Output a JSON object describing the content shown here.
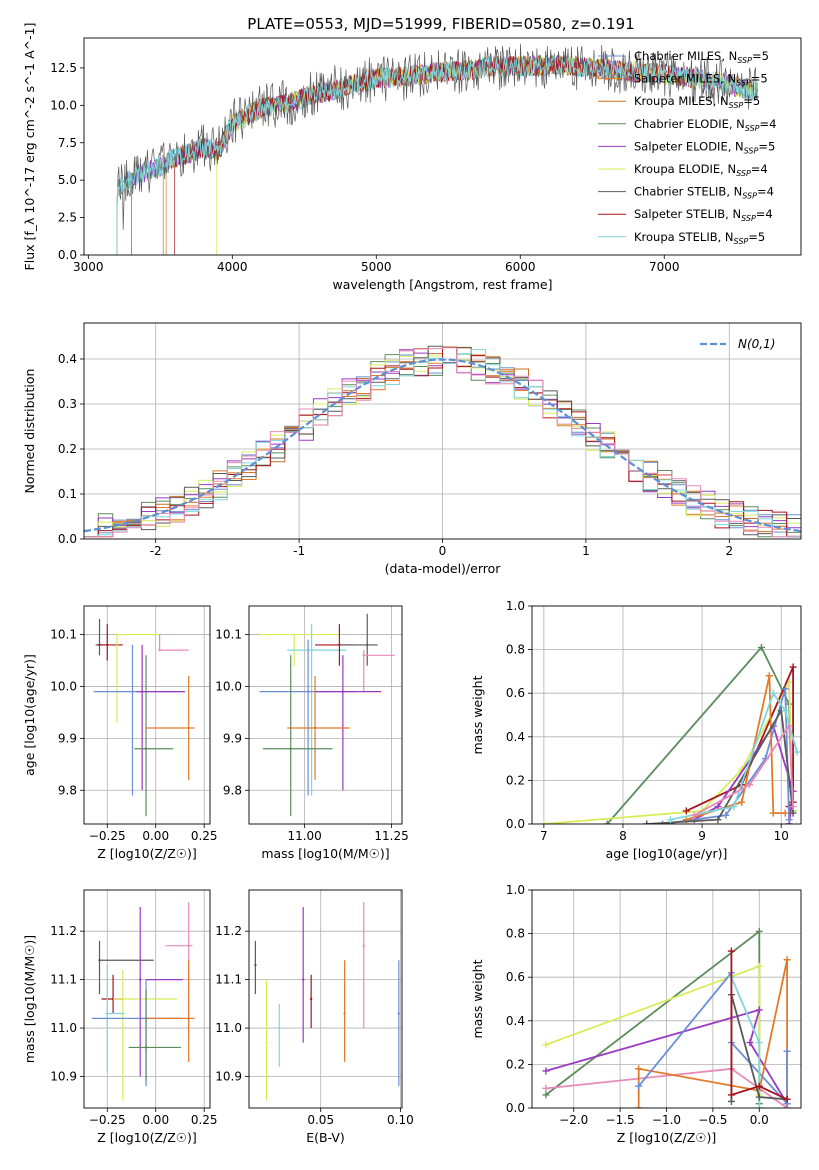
{
  "figure_title": "PLATE=0553, MJD=51999, FIBERID=0580, z=0.191",
  "colors": {
    "chabrier_miles": "#6a8fd6",
    "salpeter_miles": "#e27a29",
    "kroupa_miles": "#c96f1f",
    "chabrier_elodie": "#5c8c5c",
    "salpeter_elodie": "#9b39c2",
    "kroupa_elodie": "#d8ec5a",
    "chabrier_stelib": "#5a5a5a",
    "salpeter_stelib": "#a6151f",
    "kroupa_stelib": "#7fd6dc",
    "pink": "#e78ab8",
    "gauss": "#5b8fd6",
    "grid": "#b0b0b0"
  },
  "chart_data": [
    {
      "id": "spectrum",
      "type": "line",
      "title": "PLATE=0553, MJD=51999, FIBERID=0580, z=0.191",
      "xlabel": "wavelength [Angstrom, rest frame]",
      "ylabel": "Flux [f_λ 10^-17 erg cm^-2 s^-1 A^-1]",
      "xlim": [
        2970,
        7950
      ],
      "ylim": [
        0,
        14.5
      ],
      "xticks": [
        3000,
        4000,
        5000,
        6000,
        7000
      ],
      "yticks": [
        0.0,
        2.5,
        5.0,
        7.5,
        10.0,
        12.5
      ],
      "grid": false,
      "legend": "top-right",
      "continuum": {
        "x": [
          3200,
          3300,
          3400,
          3500,
          3600,
          3700,
          3800,
          3900,
          4000,
          4200,
          4400,
          4600,
          4800,
          5000,
          5200,
          5400,
          5600,
          5800,
          6000,
          6200,
          6400,
          6600,
          6800,
          7000,
          7200,
          7400,
          7600
        ],
        "y": [
          4.5,
          5.2,
          5.6,
          5.9,
          6.5,
          6.8,
          7.2,
          6.9,
          8.8,
          9.8,
          10.2,
          10.8,
          11.3,
          11.8,
          11.9,
          12.2,
          12.3,
          12.6,
          12.6,
          12.7,
          12.6,
          12.4,
          12.2,
          12.1,
          11.8,
          11.5,
          11.0
        ]
      },
      "series": [
        {
          "name": "Chabrier MILES, N_SSP=5",
          "color_key": "chabrier_miles"
        },
        {
          "name": "Salpeter MILES, N_SSP=5",
          "color_key": "salpeter_miles"
        },
        {
          "name": "Kroupa MILES, N_SSP=5",
          "color_key": "kroupa_miles"
        },
        {
          "name": "Chabrier ELODIE, N_SSP=4",
          "color_key": "chabrier_elodie"
        },
        {
          "name": "Salpeter ELODIE, N_SSP=5",
          "color_key": "salpeter_elodie"
        },
        {
          "name": "Kroupa ELODIE, N_SSP=4",
          "color_key": "kroupa_elodie"
        },
        {
          "name": "Chabrier STELIB, N_SSP=4",
          "color_key": "chabrier_stelib"
        },
        {
          "name": "Salpeter STELIB, N_SSP=4",
          "color_key": "salpeter_stelib"
        },
        {
          "name": "Kroupa STELIB, N_SSP=5",
          "color_key": "kroupa_stelib"
        }
      ]
    },
    {
      "id": "residuals",
      "type": "line",
      "xlabel": "(data-model)/error",
      "ylabel": "Normed distribution",
      "xlim": [
        -2.5,
        2.5
      ],
      "ylim": [
        0,
        0.48
      ],
      "xticks": [
        -2,
        -1,
        0,
        1,
        2
      ],
      "yticks": [
        0.0,
        0.1,
        0.2,
        0.3,
        0.4
      ],
      "grid": true,
      "legend": "top-right",
      "legend_label": "N(0,1)",
      "bin_width": 0.1
    },
    {
      "id": "age_vs_Z",
      "type": "scatter",
      "xlabel": "Z [log10(Z/Z☉)]",
      "ylabel": "age  [log10(age/yr)]",
      "xlim": [
        -0.37,
        0.28
      ],
      "ylim": [
        9.735,
        10.155
      ],
      "xticks": [
        -0.25,
        0.0,
        0.25
      ],
      "xticklabels": [
        "−0.25",
        "0.00",
        "0.25"
      ],
      "yticks": [
        9.8,
        9.9,
        10.0,
        10.1
      ],
      "grid": true,
      "points": [
        {
          "k": "chabrier_stelib",
          "x": -0.29,
          "xe": [
            -0.31,
            -0.26
          ],
          "y": 10.08,
          "ye": [
            10.06,
            10.13
          ]
        },
        {
          "k": "salpeter_stelib",
          "x": -0.25,
          "xe": [
            -0.3,
            -0.17
          ],
          "y": 10.08,
          "ye": [
            10.05,
            10.12
          ]
        },
        {
          "k": "kroupa_elodie",
          "x": -0.2,
          "xe": [
            -0.2,
            0.02
          ],
          "y": 10.1,
          "ye": [
            9.93,
            10.1
          ]
        },
        {
          "k": "chabrier_miles",
          "x": -0.12,
          "xe": [
            -0.32,
            0.15
          ],
          "y": 9.99,
          "ye": [
            9.79,
            10.08
          ]
        },
        {
          "k": "salpeter_elodie",
          "x": -0.07,
          "xe": [
            -0.1,
            0.15
          ],
          "y": 9.99,
          "ye": [
            9.8,
            10.08
          ]
        },
        {
          "k": "chabrier_elodie",
          "x": -0.05,
          "xe": [
            -0.11,
            0.09
          ],
          "y": 9.88,
          "ye": [
            9.75,
            10.06
          ]
        },
        {
          "k": "pink",
          "x": 0.02,
          "xe": [
            0.02,
            0.17
          ],
          "y": 10.07,
          "ye": [
            10.07,
            10.1
          ]
        },
        {
          "k": "salpeter_miles",
          "x": 0.17,
          "xe": [
            -0.05,
            0.2
          ],
          "y": 9.92,
          "ye": [
            9.82,
            10.02
          ]
        }
      ]
    },
    {
      "id": "age_vs_mass",
      "type": "scatter",
      "xlabel": "mass [log10(M/M☉)]",
      "ylabel": "",
      "xlim": [
        10.84,
        11.28
      ],
      "ylim": [
        9.735,
        10.155
      ],
      "xticks": [
        11.0,
        11.25
      ],
      "xticklabels": [
        "11.00",
        "11.25"
      ],
      "yticks": [
        9.8,
        9.9,
        10.0,
        10.1
      ],
      "grid": true,
      "points": [
        {
          "k": "kroupa_elodie",
          "x": 10.97,
          "xe": [
            10.87,
            11.1
          ],
          "y": 10.1,
          "ye": [
            10.04,
            10.1
          ]
        },
        {
          "k": "kroupa_stelib",
          "x": 11.02,
          "xe": [
            10.95,
            11.12
          ],
          "y": 10.07,
          "ye": [
            9.79,
            10.12
          ]
        },
        {
          "k": "salpeter_stelib",
          "x": 11.1,
          "xe": [
            11.03,
            11.14
          ],
          "y": 10.08,
          "ye": [
            10.04,
            10.12
          ]
        },
        {
          "k": "chabrier_stelib",
          "x": 11.18,
          "xe": [
            11.1,
            11.21
          ],
          "y": 10.08,
          "ye": [
            10.04,
            10.14
          ]
        },
        {
          "k": "pink",
          "x": 11.17,
          "xe": [
            11.17,
            11.26
          ],
          "y": 10.06,
          "ye": [
            9.99,
            10.07
          ]
        },
        {
          "k": "chabrier_miles",
          "x": 11.01,
          "xe": [
            10.87,
            11.15
          ],
          "y": 9.99,
          "ye": [
            9.79,
            10.09
          ]
        },
        {
          "k": "salpeter_elodie",
          "x": 11.11,
          "xe": [
            11.03,
            11.22
          ],
          "y": 9.99,
          "ye": [
            9.8,
            10.06
          ]
        },
        {
          "k": "salpeter_miles",
          "x": 11.03,
          "xe": [
            10.95,
            11.13
          ],
          "y": 9.92,
          "ye": [
            9.82,
            10.02
          ]
        },
        {
          "k": "chabrier_elodie",
          "x": 10.96,
          "xe": [
            10.88,
            11.08
          ],
          "y": 9.88,
          "ye": [
            9.75,
            10.06
          ]
        }
      ]
    },
    {
      "id": "weight_vs_age",
      "type": "line",
      "xlabel": "age  [log10(age/yr)]",
      "ylabel": "mass weight",
      "xlim": [
        6.85,
        10.25
      ],
      "ylim": [
        0,
        1.0
      ],
      "xticks": [
        7,
        8,
        9,
        10
      ],
      "yticks": [
        0.0,
        0.2,
        0.4,
        0.6,
        0.8,
        1.0
      ],
      "grid": true,
      "series": [
        {
          "k": "chabrier_elodie",
          "x": [
            7.8,
            9.75,
            10.1,
            10.15
          ],
          "y": [
            0.0,
            0.81,
            0.55,
            0.06
          ]
        },
        {
          "k": "kroupa_elodie",
          "x": [
            7.0,
            9.0,
            9.5,
            10.1,
            10.15
          ],
          "y": [
            0.0,
            0.06,
            0.25,
            0.65,
            0.06
          ]
        },
        {
          "k": "salpeter_stelib",
          "x": [
            8.8,
            9.5,
            10.15,
            10.15,
            10.1
          ],
          "y": [
            0.06,
            0.18,
            0.72,
            0.1,
            0.08
          ]
        },
        {
          "k": "salpeter_elodie",
          "x": [
            8.9,
            9.2,
            9.9,
            10.15,
            10.1
          ],
          "y": [
            0.02,
            0.08,
            0.45,
            0.15,
            0.0
          ]
        },
        {
          "k": "chabrier_miles",
          "x": [
            8.5,
            9.3,
            9.8,
            10.05,
            10.1
          ],
          "y": [
            0.0,
            0.04,
            0.3,
            0.62,
            0.02
          ]
        },
        {
          "k": "salpeter_miles",
          "x": [
            8.8,
            9.5,
            9.85,
            9.9,
            10.05
          ],
          "y": [
            0.02,
            0.1,
            0.68,
            0.05,
            0.05
          ]
        },
        {
          "k": "chabrier_stelib",
          "x": [
            8.3,
            9.2,
            10.0,
            10.15
          ],
          "y": [
            0.0,
            0.02,
            0.52,
            0.05
          ]
        },
        {
          "k": "kroupa_stelib",
          "x": [
            8.6,
            9.4,
            9.9,
            10.05,
            10.2
          ],
          "y": [
            0.02,
            0.08,
            0.6,
            0.52,
            0.33
          ]
        },
        {
          "k": "pink",
          "x": [
            8.9,
            9.6,
            10.1,
            10.15
          ],
          "y": [
            0.04,
            0.18,
            0.45,
            0.08
          ]
        }
      ]
    },
    {
      "id": "mass_vs_Z",
      "type": "scatter",
      "xlabel": "Z [log10(Z/Z☉)]",
      "ylabel": "mass [log10(M/M☉)]",
      "xlim": [
        -0.37,
        0.28
      ],
      "ylim": [
        10.835,
        11.285
      ],
      "xticks": [
        -0.25,
        0.0,
        0.25
      ],
      "xticklabels": [
        "−0.25",
        "0.00",
        "0.25"
      ],
      "yticks": [
        10.9,
        11.0,
        11.1,
        11.2
      ],
      "grid": true,
      "points": [
        {
          "k": "chabrier_stelib",
          "x": -0.29,
          "xe": [
            -0.29,
            -0.01
          ],
          "y": 11.14,
          "ye": [
            11.07,
            11.18
          ]
        },
        {
          "k": "salpeter_stelib",
          "x": -0.22,
          "xe": [
            -0.28,
            -0.17
          ],
          "y": 11.06,
          "ye": [
            11.03,
            11.11
          ]
        },
        {
          "k": "kroupa_elodie",
          "x": -0.17,
          "xe": [
            -0.22,
            0.11
          ],
          "y": 11.06,
          "ye": [
            10.85,
            11.12
          ]
        },
        {
          "k": "kroupa_stelib",
          "x": -0.25,
          "xe": [
            -0.26,
            -0.16
          ],
          "y": 11.03,
          "ye": [
            10.91,
            11.13
          ]
        },
        {
          "k": "chabrier_miles",
          "x": -0.05,
          "xe": [
            -0.33,
            0.13
          ],
          "y": 11.02,
          "ye": [
            10.88,
            11.1
          ]
        },
        {
          "k": "salpeter_elodie",
          "x": -0.08,
          "xe": [
            -0.05,
            0.14
          ],
          "y": 11.1,
          "ye": [
            10.9,
            11.25
          ]
        },
        {
          "k": "pink",
          "x": 0.17,
          "xe": [
            0.05,
            0.19
          ],
          "y": 11.17,
          "ye": [
            10.98,
            11.26
          ]
        },
        {
          "k": "salpeter_miles",
          "x": 0.17,
          "xe": [
            -0.05,
            0.2
          ],
          "y": 11.02,
          "ye": [
            10.93,
            11.14
          ]
        },
        {
          "k": "chabrier_elodie",
          "x": -0.05,
          "xe": [
            -0.14,
            0.13
          ],
          "y": 10.96,
          "ye": [
            10.89,
            11.08
          ]
        }
      ]
    },
    {
      "id": "mass_vs_ebv",
      "type": "scatter",
      "xlabel": "E(B-V)",
      "ylabel": "",
      "xlim": [
        0.005,
        0.101
      ],
      "ylim": [
        10.835,
        11.285
      ],
      "xticks": [
        0.05,
        0.1
      ],
      "xticklabels": [
        "0.05",
        "0.10"
      ],
      "yticks": [
        10.9,
        11.0,
        11.1,
        11.2
      ],
      "grid": true,
      "points": [
        {
          "k": "chabrier_stelib",
          "x": 0.009,
          "y": 11.13,
          "ye": [
            11.07,
            11.18
          ]
        },
        {
          "k": "kroupa_elodie",
          "x": 0.016,
          "y": 10.97,
          "ye": [
            10.85,
            11.1
          ]
        },
        {
          "k": "kroupa_stelib",
          "x": 0.024,
          "y": 11.0,
          "ye": [
            10.92,
            11.05
          ]
        },
        {
          "k": "salpeter_elodie",
          "x": 0.039,
          "y": 11.1,
          "ye": [
            10.97,
            11.25
          ]
        },
        {
          "k": "salpeter_stelib",
          "x": 0.044,
          "y": 11.06,
          "ye": [
            11.0,
            11.11
          ]
        },
        {
          "k": "salpeter_miles",
          "x": 0.065,
          "y": 11.03,
          "ye": [
            10.93,
            11.14
          ]
        },
        {
          "k": "pink",
          "x": 0.077,
          "y": 11.17,
          "ye": [
            11.0,
            11.26
          ]
        },
        {
          "k": "chabrier_miles",
          "x": 0.099,
          "y": 11.03,
          "ye": [
            10.88,
            11.14
          ]
        }
      ]
    },
    {
      "id": "weight_vs_Z",
      "type": "line",
      "xlabel": "Z [log10(Z/Z☉)]",
      "ylabel": "mass weight",
      "xlim": [
        -2.45,
        0.45
      ],
      "ylim": [
        0,
        1.0
      ],
      "xticks": [
        -2.0,
        -1.5,
        -1.0,
        -0.5,
        0.0
      ],
      "xticklabels": [
        "−2.0",
        "−1.5",
        "−1.0",
        "−0.5",
        "0.0"
      ],
      "yticks": [
        0.0,
        0.2,
        0.4,
        0.6,
        0.8,
        1.0
      ],
      "grid": true,
      "series": [
        {
          "k": "chabrier_elodie",
          "x": [
            -2.3,
            0.0,
            0.0,
            0.0
          ],
          "y": [
            0.06,
            0.81,
            0.08,
            0.02
          ]
        },
        {
          "k": "kroupa_elodie",
          "x": [
            -2.3,
            0.0,
            0.0
          ],
          "y": [
            0.29,
            0.65,
            0.06
          ]
        },
        {
          "k": "salpeter_elodie",
          "x": [
            -2.3,
            0.0,
            -0.1,
            0.3
          ],
          "y": [
            0.17,
            0.45,
            0.3,
            0.02
          ]
        },
        {
          "k": "pink",
          "x": [
            -2.3,
            -0.3,
            0.3,
            0.3
          ],
          "y": [
            0.09,
            0.18,
            0.0,
            0.26
          ]
        },
        {
          "k": "salpeter_miles",
          "x": [
            -1.3,
            -1.3,
            0.0,
            0.3,
            0.3
          ],
          "y": [
            0.0,
            0.18,
            0.08,
            0.68,
            0.02
          ]
        },
        {
          "k": "chabrier_miles",
          "x": [
            -1.3,
            -0.3,
            -0.3,
            0.3,
            0.3
          ],
          "y": [
            0.1,
            0.62,
            0.3,
            0.02,
            0.26
          ]
        },
        {
          "k": "kroupa_stelib",
          "x": [
            -0.3,
            0.0,
            0.0,
            0.0
          ],
          "y": [
            0.6,
            0.3,
            0.0,
            0.1
          ]
        },
        {
          "k": "chabrier_stelib",
          "x": [
            -0.3,
            -0.3,
            0.0,
            0.3
          ],
          "y": [
            0.03,
            0.52,
            0.05,
            0.04
          ]
        },
        {
          "k": "salpeter_stelib",
          "x": [
            -0.3,
            -0.3,
            0.0,
            0.3
          ],
          "y": [
            0.72,
            0.06,
            0.1,
            0.04
          ]
        }
      ]
    }
  ]
}
